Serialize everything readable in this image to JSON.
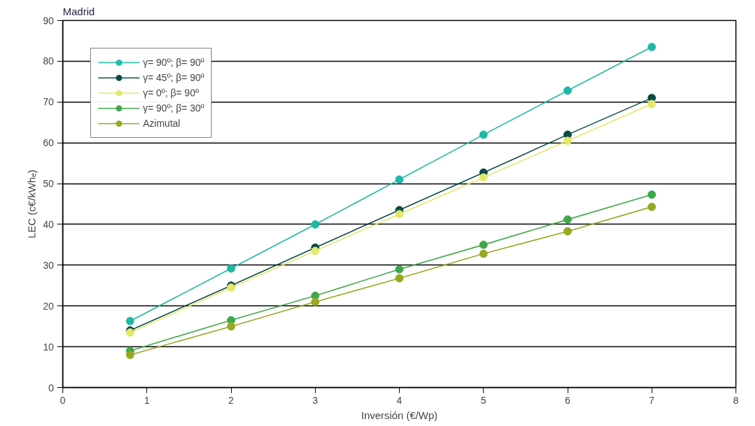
{
  "chart_data": {
    "type": "line",
    "title": "Madrid",
    "xlabel": "Inversión (€/Wp)",
    "ylabel": "LEC (c€/kWhₑ)",
    "x": [
      0.8,
      2,
      3,
      4,
      5,
      6,
      7
    ],
    "series": [
      {
        "name": "γ= 90º; β= 90º",
        "color": "#1fb8a8",
        "values": [
          16.3,
          29.2,
          40,
          51,
          62,
          72.8,
          83.5
        ]
      },
      {
        "name": "γ= 45º; β= 90º",
        "color": "#0b4a45",
        "values": [
          14,
          25,
          34.3,
          43.5,
          52.7,
          62,
          71
        ]
      },
      {
        "name": "γ= 0º; β= 90º",
        "color": "#e3e86a",
        "values": [
          13.5,
          24.5,
          33.5,
          42.5,
          51.5,
          60.5,
          69.5
        ]
      },
      {
        "name": "γ= 90º; β= 30º",
        "color": "#3fa84a",
        "values": [
          9,
          16.5,
          22.5,
          29,
          35,
          41.2,
          47.3
        ]
      },
      {
        "name": "Azimutal",
        "color": "#98a820",
        "values": [
          8,
          15,
          21,
          26.8,
          32.8,
          38.3,
          44.3
        ]
      }
    ],
    "xlim": [
      0,
      8
    ],
    "xticks": [
      0,
      1,
      2,
      3,
      4,
      5,
      6,
      7,
      8
    ],
    "ylim": [
      0,
      90
    ],
    "yticks": [
      0,
      10,
      20,
      30,
      40,
      50,
      60,
      70,
      80,
      90
    ],
    "grid": "y",
    "legend": "top left",
    "marker": "circle",
    "line_style": "solid"
  }
}
